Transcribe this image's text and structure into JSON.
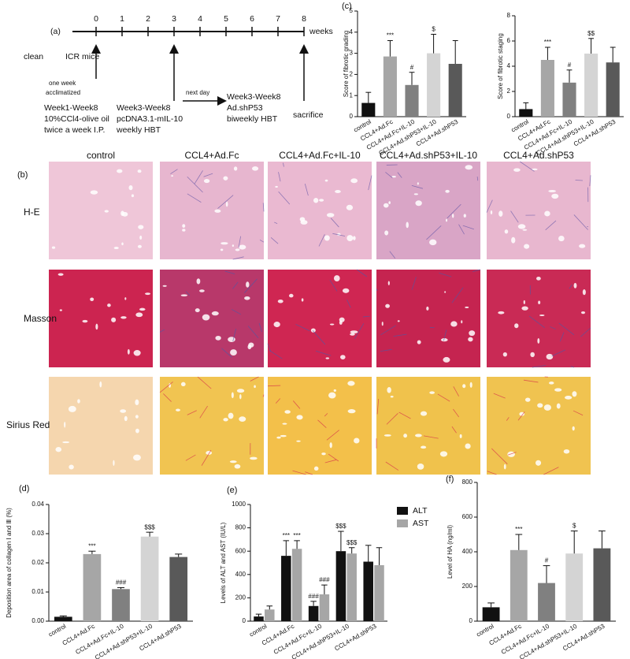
{
  "timeline": {
    "panel": "(a)",
    "ticks": [
      0,
      1,
      2,
      3,
      4,
      5,
      6,
      7,
      8
    ],
    "unit": "weeks",
    "start": "clean",
    "mice": "ICR mice",
    "acclimatize": [
      "one week",
      "acclimatized"
    ],
    "ccl4": [
      "Week1-Week8",
      "10%CCl4-olive oil",
      "twice a week I.P."
    ],
    "il10": [
      "Week3-Week8",
      "pcDNA3.1-mIL-10",
      "weekly HBT"
    ],
    "next": "next day",
    "shp53": [
      "Week3-Week8",
      "Ad.shP53",
      "biweekly HBT"
    ],
    "end": "sacrifice"
  },
  "micrographs": {
    "panel": "(b)",
    "columns": [
      "control",
      "CCL4+Ad.Fc",
      "CCL4+Ad.Fc+IL-10",
      "CCL4+Ad.shP53+IL-10",
      "CCL4+Ad.shP53"
    ],
    "rows": [
      "H-E",
      "Masson",
      "Sirius Red"
    ]
  },
  "chart_data": [
    {
      "type": "bar",
      "panel": "(c)",
      "ylabel": "Score of fibrotic grading",
      "categories": [
        "control",
        "CCL4+Ad.Fc",
        "CCL4+Ad.Fc+IL-10",
        "CCL4+Ad.shP53+IL-10",
        "CCL4+Ad.shP53"
      ],
      "values": [
        0.65,
        2.85,
        1.5,
        3.0,
        2.5
      ],
      "errors": [
        0.5,
        0.75,
        0.6,
        0.9,
        1.1
      ],
      "annotations": [
        null,
        "***",
        "#",
        "$",
        null
      ],
      "colors": [
        "#111111",
        "#a6a6a6",
        "#808080",
        "#d4d4d4",
        "#595959"
      ],
      "ylim": [
        0,
        5
      ],
      "yticks": [
        0,
        1,
        2,
        3,
        4,
        5
      ]
    },
    {
      "type": "bar",
      "ylabel": "Score of fibrotic staging",
      "categories": [
        "control",
        "CCL4+Ad.Fc",
        "CCL4+Ad.Fc+IL-10",
        "CCL4+Ad.shP53+IL-10",
        "CCL4+Ad.shP53"
      ],
      "values": [
        0.6,
        4.5,
        2.7,
        5.0,
        4.3
      ],
      "errors": [
        0.5,
        1.0,
        1.0,
        1.2,
        1.2
      ],
      "annotations": [
        null,
        "***",
        "#",
        "$$",
        null
      ],
      "colors": [
        "#111111",
        "#a6a6a6",
        "#808080",
        "#d4d4d4",
        "#595959"
      ],
      "ylim": [
        0,
        8
      ],
      "yticks": [
        0,
        2,
        4,
        6,
        8
      ]
    },
    {
      "type": "bar",
      "panel": "(d)",
      "ylabel": "Deposition area of collagen Ⅰ and Ⅲ (%)",
      "categories": [
        "control",
        "CCL4+Ad.Fc",
        "CCL4+Ad.Fc+IL-10",
        "CCL4+Ad.shP53+IL-10",
        "CCL4+Ad.shP53"
      ],
      "values": [
        0.0015,
        0.023,
        0.011,
        0.029,
        0.022
      ],
      "errors": [
        0.0003,
        0.001,
        0.0005,
        0.0015,
        0.001
      ],
      "annotations": [
        null,
        "***",
        "###",
        "$$$",
        null
      ],
      "colors": [
        "#111111",
        "#a6a6a6",
        "#808080",
        "#d4d4d4",
        "#595959"
      ],
      "ylim": [
        0,
        0.04
      ],
      "yticks": [
        {
          "value": 0,
          "label": "0.00"
        },
        0.01,
        0.02,
        0.03,
        0.04
      ]
    },
    {
      "type": "grouped-bar",
      "panel": "(e)",
      "ylabel": "Levels of ALT and AST (IU/L)",
      "categories": [
        "control",
        "CCL4+Ad.Fc",
        "CCL4+Ad.Fc+IL-10",
        "CCL4+Ad.shP53+IL-10",
        "CCL4+Ad.shP53"
      ],
      "series": [
        {
          "name": "ALT",
          "color": "#111111",
          "values": [
            40,
            560,
            130,
            600,
            510
          ],
          "errors": [
            20,
            130,
            40,
            170,
            140
          ],
          "annotations": [
            null,
            "***",
            "###",
            "$$$",
            null
          ]
        },
        {
          "name": "AST",
          "color": "#a6a6a6",
          "values": [
            100,
            620,
            230,
            580,
            480
          ],
          "errors": [
            30,
            70,
            80,
            50,
            150
          ],
          "annotations": [
            null,
            "***",
            "###",
            "$$$",
            null
          ]
        }
      ],
      "legend": "upper right",
      "ylim": [
        0,
        1000
      ],
      "yticks": [
        0,
        200,
        400,
        600,
        800,
        1000
      ]
    },
    {
      "type": "bar",
      "panel": "(f)",
      "ylabel": "Level of HA (ng/ml)",
      "categories": [
        "control",
        "CCL4+Ad.Fc",
        "CCL4+Ad.Fc+IL-10",
        "CCL4+Ad.shP53+IL-10",
        "CCL4+Ad.shP53"
      ],
      "values": [
        80,
        410,
        220,
        390,
        420
      ],
      "errors": [
        25,
        90,
        100,
        130,
        100
      ],
      "annotations": [
        null,
        "***",
        "#",
        "$",
        null
      ],
      "colors": [
        "#111111",
        "#a6a6a6",
        "#808080",
        "#d4d4d4",
        "#595959"
      ],
      "ylim": [
        0,
        800
      ],
      "yticks": [
        0,
        200,
        400,
        600,
        800
      ]
    }
  ]
}
